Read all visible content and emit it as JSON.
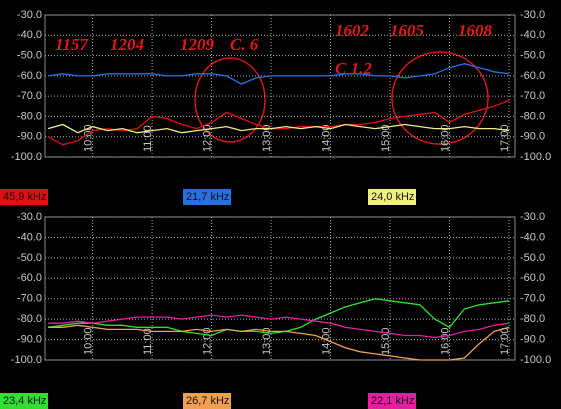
{
  "chart_data": [
    {
      "type": "line",
      "x": [
        9.25,
        9.5,
        9.75,
        10,
        10.25,
        10.5,
        10.75,
        11,
        11.25,
        11.5,
        11.75,
        12,
        12.25,
        12.5,
        12.75,
        13,
        13.25,
        13.5,
        13.75,
        14,
        14.25,
        14.5,
        14.75,
        15,
        15.25,
        15.5,
        15.75,
        16,
        16.25,
        16.5,
        16.75,
        17
      ],
      "xlim": [
        9.2,
        17.1
      ],
      "xticks": [
        {
          "value": 10,
          "label": "10:00"
        },
        {
          "value": 11,
          "label": "11:00"
        },
        {
          "value": 12,
          "label": "12:00"
        },
        {
          "value": 13,
          "label": "13:00"
        },
        {
          "value": 14,
          "label": "14:00"
        },
        {
          "value": 15,
          "label": "15:00"
        },
        {
          "value": 16,
          "label": "16:00"
        },
        {
          "value": 17,
          "label": "17:00"
        }
      ],
      "ylim": [
        -100,
        -30
      ],
      "yticks": [
        {
          "value": -30,
          "label": "-30.0"
        },
        {
          "value": -40,
          "label": "-40.0"
        },
        {
          "value": -50,
          "label": "-50.0"
        },
        {
          "value": -60,
          "label": "-60.0"
        },
        {
          "value": -70,
          "label": "-70.0"
        },
        {
          "value": -80,
          "label": "-80.0"
        },
        {
          "value": -90,
          "label": "-90.0"
        },
        {
          "value": -100,
          "label": "-100.0"
        }
      ],
      "grid": true,
      "annotations": [
        "1157",
        "1204",
        "1209",
        "C. 6",
        "1602",
        "1605",
        "1608",
        "C 1.2"
      ],
      "series": [
        {
          "name": "45,9 kHz",
          "color": "#e01010",
          "values": [
            -90,
            -94,
            -92,
            -87,
            -86,
            -87,
            -86,
            -80,
            -81,
            -84,
            -86,
            -83,
            -78,
            -81,
            -84,
            -86,
            -86,
            -85,
            -85,
            -85,
            -84,
            -84,
            -83,
            -81,
            -80,
            -79,
            -78,
            -83,
            -79,
            -77,
            -75,
            -72
          ]
        },
        {
          "name": "21,7 kHz",
          "color": "#2a6fe0",
          "values": [
            -60,
            -59,
            -60,
            -60,
            -59,
            -59,
            -59,
            -59,
            -60,
            -60,
            -59,
            -59,
            -60,
            -64,
            -61,
            -60,
            -60,
            -60,
            -60,
            -60,
            -59,
            -59,
            -60,
            -60,
            -61,
            -60,
            -59,
            -56,
            -54,
            -56,
            -58,
            -59
          ]
        },
        {
          "name": "24,0 kHz",
          "color": "#f0f080",
          "values": [
            -86,
            -84,
            -88,
            -85,
            -87,
            -86,
            -88,
            -87,
            -86,
            -88,
            -87,
            -86,
            -85,
            -87,
            -86,
            -86,
            -85,
            -86,
            -85,
            -86,
            -84,
            -85,
            -86,
            -85,
            -84,
            -85,
            -86,
            -86,
            -85,
            -86,
            -86,
            -87
          ]
        }
      ]
    },
    {
      "type": "line",
      "x": [
        9.25,
        9.5,
        9.75,
        10,
        10.25,
        10.5,
        10.75,
        11,
        11.25,
        11.5,
        11.75,
        12,
        12.25,
        12.5,
        12.75,
        13,
        13.25,
        13.5,
        13.75,
        14,
        14.25,
        14.5,
        14.75,
        15,
        15.25,
        15.5,
        15.75,
        16,
        16.25,
        16.5,
        16.75,
        17
      ],
      "xlim": [
        9.2,
        17.1
      ],
      "xticks": [
        {
          "value": 10,
          "label": "10:00"
        },
        {
          "value": 11,
          "label": "11:00"
        },
        {
          "value": 12,
          "label": "12:00"
        },
        {
          "value": 13,
          "label": "13:00"
        },
        {
          "value": 14,
          "label": "14:00"
        },
        {
          "value": 15,
          "label": "15:00"
        },
        {
          "value": 16,
          "label": "16:00"
        },
        {
          "value": 17,
          "label": "17:00"
        }
      ],
      "ylim": [
        -100,
        -30
      ],
      "yticks": [
        {
          "value": -30,
          "label": "-30.0"
        },
        {
          "value": -40,
          "label": "-40.0"
        },
        {
          "value": -50,
          "label": "-50.0"
        },
        {
          "value": -60,
          "label": "-60.0"
        },
        {
          "value": -70,
          "label": "-70.0"
        },
        {
          "value": -80,
          "label": "-80.0"
        },
        {
          "value": -90,
          "label": "-90.0"
        },
        {
          "value": -100,
          "label": "-100.0"
        }
      ],
      "grid": true,
      "series": [
        {
          "name": "23,4 kHz",
          "color": "#30e030",
          "values": [
            -84,
            -83,
            -82,
            -82,
            -83,
            -83,
            -84,
            -84,
            -84,
            -86,
            -87,
            -88,
            -85,
            -86,
            -86,
            -87,
            -86,
            -84,
            -80,
            -77,
            -74,
            -72,
            -70,
            -71,
            -72,
            -73,
            -80,
            -84,
            -75,
            -73,
            -72,
            -71
          ]
        },
        {
          "name": "26,7 kHz",
          "color": "#f0a050",
          "values": [
            -84,
            -84,
            -83,
            -84,
            -85,
            -85,
            -85,
            -86,
            -86,
            -86,
            -85,
            -86,
            -85,
            -86,
            -85,
            -86,
            -86,
            -87,
            -88,
            -91,
            -94,
            -96,
            -97,
            -98,
            -99,
            -100,
            -100,
            -100,
            -99,
            -92,
            -86,
            -84
          ]
        },
        {
          "name": "22,1 kHz",
          "color": "#e020a0",
          "values": [
            -82,
            -82,
            -81,
            -82,
            -81,
            -80,
            -79,
            -79,
            -79,
            -80,
            -79,
            -78,
            -79,
            -78,
            -79,
            -80,
            -79,
            -80,
            -81,
            -82,
            -84,
            -85,
            -86,
            -87,
            -88,
            -88,
            -89,
            -88,
            -86,
            -85,
            -83,
            -82
          ]
        }
      ]
    }
  ]
}
